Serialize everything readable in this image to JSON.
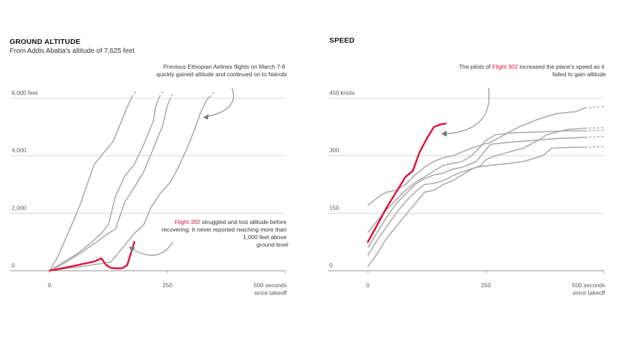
{
  "chart_data": [
    {
      "type": "line",
      "title": "GROUND ALTITUDE",
      "subtitle": "From Addis Ababa's altitude of 7,625 feet",
      "xlim": [
        0,
        500
      ],
      "ylim": [
        0,
        6000
      ],
      "x_ticks": [
        {
          "value": 0,
          "label": "0"
        },
        {
          "value": 250,
          "label": "250"
        },
        {
          "value": 500,
          "label": "500 seconds",
          "label2": "since takeoff"
        }
      ],
      "y_ticks": [
        {
          "value": 0,
          "label": "0"
        },
        {
          "value": 2000,
          "label": "2,000"
        },
        {
          "value": 4000,
          "label": "4,000"
        },
        {
          "value": 6000,
          "label": "6,000 feet"
        }
      ],
      "series": [
        {
          "highlight": true,
          "points": [
            [
              0,
              0
            ],
            [
              40,
              130
            ],
            [
              75,
              250
            ],
            [
              95,
              320
            ],
            [
              110,
              430
            ],
            [
              120,
              200
            ],
            [
              130,
              100
            ],
            [
              145,
              80
            ],
            [
              155,
              90
            ],
            [
              165,
              200
            ],
            [
              180,
              1000
            ]
          ]
        },
        {
          "points": [
            [
              0,
              0
            ],
            [
              15,
              400
            ],
            [
              30,
              950
            ],
            [
              50,
              1700
            ],
            [
              65,
              2300
            ],
            [
              80,
              3000
            ],
            [
              95,
              3700
            ],
            [
              115,
              4100
            ],
            [
              135,
              4500
            ],
            [
              150,
              5100
            ],
            [
              165,
              5700
            ],
            [
              175,
              6050
            ]
          ],
          "dashed_to": [
            183,
            6250
          ]
        },
        {
          "points": [
            [
              0,
              0
            ],
            [
              25,
              250
            ],
            [
              60,
              600
            ],
            [
              90,
              1000
            ],
            [
              110,
              1300
            ],
            [
              125,
              1600
            ],
            [
              140,
              2600
            ],
            [
              160,
              3300
            ],
            [
              180,
              3700
            ],
            [
              200,
              4400
            ],
            [
              220,
              5200
            ],
            [
              225,
              5700
            ],
            [
              233,
              6050
            ]
          ],
          "dashed_to": [
            240,
            6250
          ]
        },
        {
          "points": [
            [
              0,
              0
            ],
            [
              25,
              200
            ],
            [
              60,
              550
            ],
            [
              100,
              1000
            ],
            [
              120,
              1250
            ],
            [
              140,
              1450
            ],
            [
              160,
              2400
            ],
            [
              180,
              2900
            ],
            [
              200,
              3450
            ],
            [
              220,
              4250
            ],
            [
              240,
              5050
            ],
            [
              250,
              5750
            ],
            [
              255,
              5950
            ]
          ],
          "dashed_to": [
            262,
            6200
          ]
        },
        {
          "points": [
            [
              0,
              0
            ],
            [
              70,
              150
            ],
            [
              110,
              250
            ],
            [
              130,
              300
            ],
            [
              140,
              500
            ],
            [
              160,
              900
            ],
            [
              180,
              1300
            ],
            [
              200,
              1600
            ],
            [
              215,
              2200
            ],
            [
              235,
              2700
            ],
            [
              255,
              3050
            ],
            [
              270,
              3500
            ],
            [
              290,
              4200
            ],
            [
              305,
              4800
            ],
            [
              320,
              5500
            ],
            [
              335,
              6000
            ],
            [
              340,
              6050
            ]
          ],
          "dashed_to": [
            350,
            6250
          ]
        }
      ],
      "annotations": [
        {
          "lines": [
            [
              {
                "text": "Previous Ethiopian Airlines flights on March 7-8"
              }
            ],
            [
              {
                "text": "quickly gained altitude and continued on to Nairobi"
              }
            ]
          ]
        },
        {
          "lines": [
            [
              {
                "text": "Flight 302",
                "highlight": true
              },
              {
                "text": " struggled and lost altitude before"
              }
            ],
            [
              {
                "text": "recovering. It never reported reaching more than"
              }
            ],
            [
              {
                "text": "1,000 feet above"
              }
            ],
            [
              {
                "text": "ground level"
              }
            ]
          ]
        }
      ]
    },
    {
      "type": "line",
      "title": "SPEED",
      "subtitle": "",
      "xlim": [
        0,
        500
      ],
      "ylim": [
        0,
        450
      ],
      "x_ticks": [
        {
          "value": 0,
          "label": "0"
        },
        {
          "value": 250,
          "label": "250"
        },
        {
          "value": 500,
          "label": "500 seconds",
          "label2": "since takeoff"
        }
      ],
      "y_ticks": [
        {
          "value": 0,
          "label": "0"
        },
        {
          "value": 150,
          "label": "150"
        },
        {
          "value": 300,
          "label": "300"
        },
        {
          "value": 450,
          "label": "450 knots"
        }
      ],
      "series": [
        {
          "highlight": true,
          "points": [
            [
              0,
              75
            ],
            [
              20,
              120
            ],
            [
              40,
              165
            ],
            [
              60,
              205
            ],
            [
              80,
              245
            ],
            [
              95,
              260
            ],
            [
              110,
              310
            ],
            [
              125,
              345
            ],
            [
              140,
              375
            ],
            [
              155,
              382
            ],
            [
              165,
              384
            ]
          ]
        },
        {
          "points": [
            [
              0,
              170
            ],
            [
              15,
              185
            ],
            [
              25,
              195
            ],
            [
              40,
              205
            ],
            [
              60,
              210
            ],
            [
              80,
              225
            ],
            [
              100,
              250
            ],
            [
              120,
              270
            ],
            [
              140,
              285
            ],
            [
              160,
              295
            ],
            [
              180,
              300
            ],
            [
              200,
              310
            ],
            [
              220,
              320
            ],
            [
              245,
              330
            ],
            [
              260,
              335
            ],
            [
              290,
              355
            ],
            [
              320,
              375
            ],
            [
              360,
              395
            ],
            [
              400,
              410
            ],
            [
              440,
              415
            ],
            [
              460,
              425
            ]
          ],
          "dashed_to": [
            500,
            428
          ]
        },
        {
          "points": [
            [
              0,
              100
            ],
            [
              20,
              130
            ],
            [
              40,
              160
            ],
            [
              60,
              185
            ],
            [
              80,
              210
            ],
            [
              100,
              230
            ],
            [
              120,
              245
            ],
            [
              140,
              260
            ],
            [
              160,
              275
            ],
            [
              180,
              280
            ],
            [
              200,
              285
            ],
            [
              220,
              300
            ],
            [
              240,
              325
            ],
            [
              250,
              340
            ],
            [
              270,
              355
            ],
            [
              310,
              360
            ],
            [
              360,
              362
            ],
            [
              420,
              365
            ],
            [
              460,
              365
            ]
          ],
          "dashed_to": [
            500,
            366
          ]
        },
        {
          "points": [
            [
              0,
              60
            ],
            [
              20,
              100
            ],
            [
              40,
              140
            ],
            [
              60,
              175
            ],
            [
              80,
              200
            ],
            [
              100,
              225
            ],
            [
              120,
              240
            ],
            [
              140,
              250
            ],
            [
              160,
              255
            ],
            [
              180,
              265
            ],
            [
              200,
              270
            ],
            [
              230,
              285
            ],
            [
              260,
              330
            ],
            [
              300,
              335
            ],
            [
              350,
              340
            ],
            [
              400,
              345
            ],
            [
              460,
              348
            ]
          ],
          "dashed_to": [
            500,
            350
          ]
        },
        {
          "points": [
            [
              0,
              40
            ],
            [
              20,
              80
            ],
            [
              40,
              115
            ],
            [
              60,
              150
            ],
            [
              80,
              180
            ],
            [
              100,
              205
            ],
            [
              120,
              225
            ],
            [
              140,
              228
            ],
            [
              160,
              235
            ],
            [
              180,
              248
            ],
            [
              200,
              258
            ],
            [
              230,
              270
            ],
            [
              260,
              275
            ],
            [
              300,
              280
            ],
            [
              330,
              285
            ],
            [
              370,
              300
            ],
            [
              390,
              320
            ],
            [
              430,
              322
            ],
            [
              460,
              322
            ]
          ],
          "dashed_to": [
            500,
            324
          ]
        },
        {
          "points": [
            [
              0,
              10
            ],
            [
              20,
              45
            ],
            [
              40,
              85
            ],
            [
              60,
              115
            ],
            [
              80,
              145
            ],
            [
              100,
              175
            ],
            [
              120,
              205
            ],
            [
              140,
              210
            ],
            [
              160,
              225
            ],
            [
              180,
              235
            ],
            [
              200,
              250
            ],
            [
              220,
              265
            ],
            [
              240,
              275
            ],
            [
              250,
              290
            ],
            [
              270,
              300
            ],
            [
              300,
              310
            ],
            [
              330,
              320
            ],
            [
              360,
              340
            ],
            [
              380,
              355
            ],
            [
              420,
              368
            ],
            [
              460,
              372
            ]
          ],
          "dashed_to": [
            500,
            373
          ]
        }
      ],
      "annotations": [
        {
          "lines": [
            [
              {
                "text": "The pilots of "
              },
              {
                "text": "Flight 302",
                "highlight": true
              },
              {
                "text": " increased the plane's speed as it"
              }
            ],
            [
              {
                "text": "failed to gain altitude"
              }
            ]
          ]
        }
      ]
    }
  ]
}
